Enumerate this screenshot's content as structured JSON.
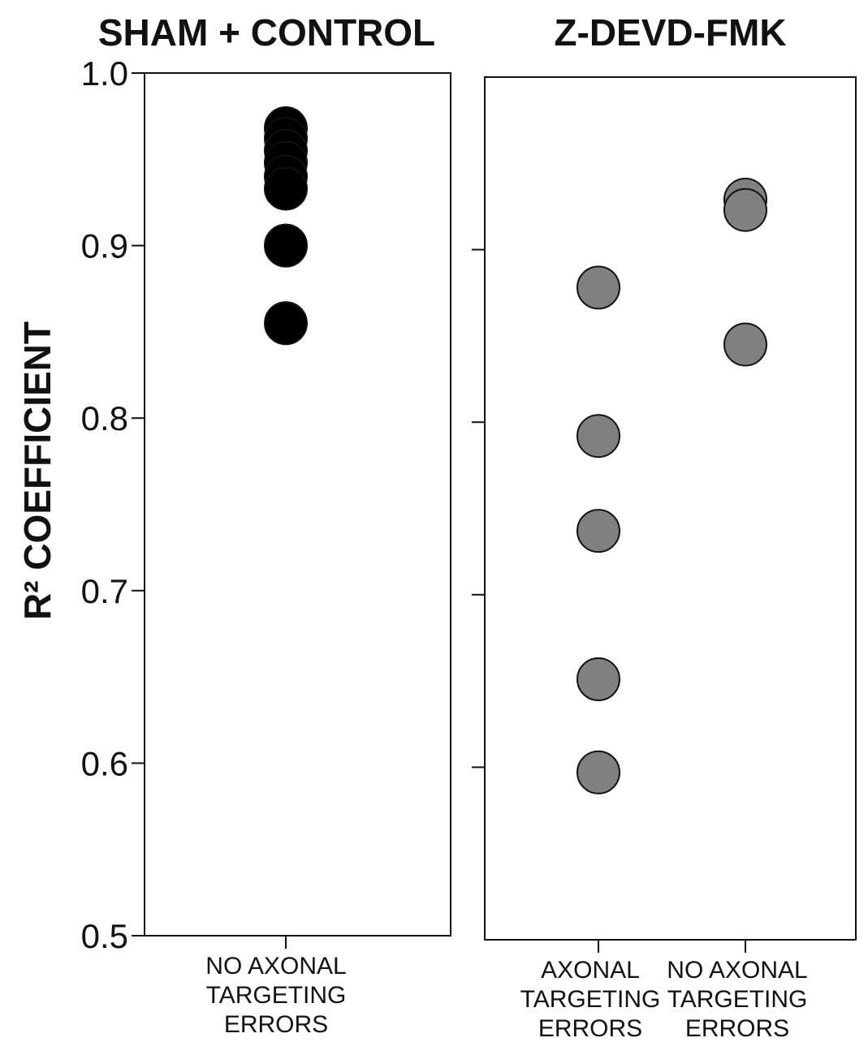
{
  "chart_data": [
    {
      "type": "strip",
      "title": "SHAM + CONTROL",
      "y_label": "R² COEFFICIENT",
      "categories": [
        "NO AXONAL TARGETING ERRORS"
      ],
      "values": [
        [
          0.968,
          0.962,
          0.955,
          0.948,
          0.94,
          0.933,
          0.9,
          0.855
        ]
      ],
      "color": "#000000",
      "ylim": [
        0.5,
        1.0
      ],
      "yticks": [
        0.5,
        0.6,
        0.7,
        0.8,
        0.9,
        {
          "value": 1,
          "label": "1.0"
        }
      ]
    },
    {
      "type": "strip",
      "title": "Z-DEVD-FMK",
      "categories": [
        "AXONAL TARGETING ERRORS",
        "NO AXONAL TARGETING ERRORS"
      ],
      "values": [
        [
          0.878,
          0.792,
          0.737,
          0.651,
          0.597
        ],
        [
          0.929,
          0.923,
          0.845
        ]
      ],
      "color": "#808080",
      "ylim": [
        0.5,
        1.0
      ],
      "yticks": [
        0.6,
        0.7,
        0.8,
        0.9
      ]
    }
  ]
}
